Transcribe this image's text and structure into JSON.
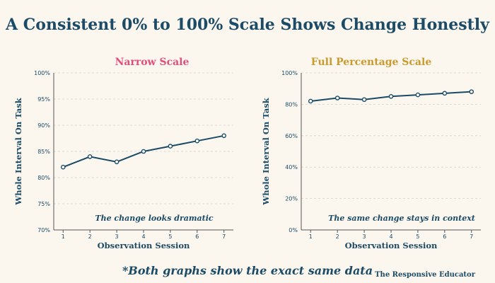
{
  "title": "A Consistent 0% to 100% Scale Shows Change Honestly",
  "footnote": "*Both graphs show the exact same data",
  "credit": "The Responsive Educator",
  "colors": {
    "line": "#1b4b66",
    "title": "#1b4b66",
    "left_title": "#e0507a",
    "right_title": "#c99a2e",
    "grid": "#d3d3d3",
    "background": "#fbf6ee"
  },
  "chart_data": [
    {
      "type": "line",
      "title": "Narrow Scale",
      "xlabel": "Observation Session",
      "ylabel": "Whole Interval On Task",
      "x": [
        1,
        2,
        3,
        4,
        5,
        6,
        7
      ],
      "series": [
        {
          "values": [
            82,
            84,
            83,
            85,
            86,
            87,
            88
          ]
        }
      ],
      "ylim": [
        70,
        100
      ],
      "yticks": [
        70,
        75,
        80,
        85,
        90,
        95,
        100
      ],
      "ytick_labels": [
        "70%",
        "75%",
        "80%",
        "85%",
        "90%",
        "95%",
        "100%"
      ],
      "xticks": [
        "1",
        "2",
        "3",
        "4",
        "5",
        "6",
        "7"
      ],
      "grid": "horizontal dashed",
      "annotation": "The change looks dramatic"
    },
    {
      "type": "line",
      "title": "Full Percentage Scale",
      "xlabel": "Observation Session",
      "ylabel": "Whole Interval On Task",
      "x": [
        1,
        2,
        3,
        4,
        5,
        6,
        7
      ],
      "series": [
        {
          "values": [
            82,
            84,
            83,
            85,
            86,
            87,
            88
          ]
        }
      ],
      "ylim": [
        0,
        100
      ],
      "yticks": [
        0,
        20,
        40,
        60,
        80,
        100
      ],
      "ytick_labels": [
        "0%",
        "20%",
        "40%",
        "60%",
        "80%",
        "100%"
      ],
      "xticks": [
        "1",
        "2",
        "3",
        "4",
        "5",
        "6",
        "7"
      ],
      "grid": "horizontal dashed",
      "annotation": "The same change stays in context"
    }
  ]
}
